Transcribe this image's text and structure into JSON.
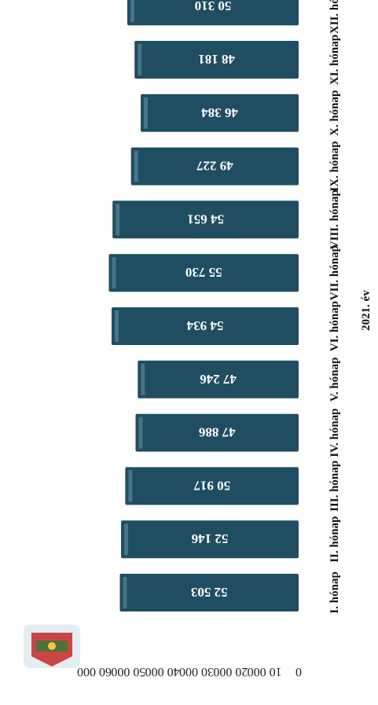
{
  "chart_data": {
    "type": "bar",
    "orientation": "horizontal",
    "xlabel": "2021. év",
    "ylim": [
      0,
      60000
    ],
    "yticks": [
      "0",
      "10 000",
      "20 000",
      "30 000",
      "40 000",
      "50 000",
      "60 000"
    ],
    "categories": [
      "I. hónap",
      "II. hónap",
      "III. hónap",
      "IV. hónap",
      "V. hónap",
      "VI. hónap",
      "VII. hónap",
      "VIII. hónap",
      "IX. hónap",
      "X. hónap",
      "XI. hónap",
      "XII. hónap"
    ],
    "values": [
      52503,
      52146,
      50917,
      47886,
      47246,
      54934,
      55730,
      54651,
      49227,
      46384,
      48181,
      50310
    ],
    "value_labels": [
      "52 503",
      "52 146",
      "50 917",
      "47 886",
      "47 246",
      "54 934",
      "55 730",
      "54 651",
      "49 227",
      "46 384",
      "48 181",
      "50 310"
    ],
    "bar_color": "#1f4e62",
    "grid": false,
    "legend": "none"
  }
}
